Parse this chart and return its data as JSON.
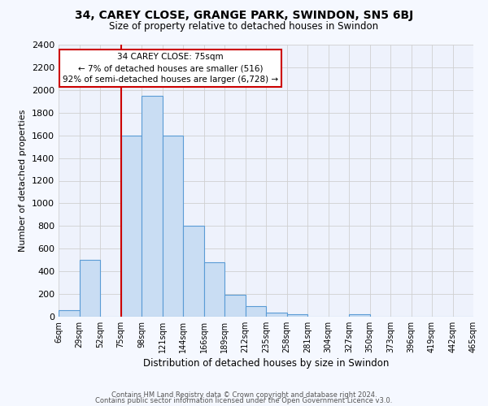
{
  "title": "34, CAREY CLOSE, GRANGE PARK, SWINDON, SN5 6BJ",
  "subtitle": "Size of property relative to detached houses in Swindon",
  "xlabel": "Distribution of detached houses by size in Swindon",
  "ylabel": "Number of detached properties",
  "footer1": "Contains HM Land Registry data © Crown copyright and database right 2024.",
  "footer2": "Contains public sector information licensed under the Open Government Licence v3.0.",
  "bin_edges": [
    6,
    29,
    52,
    75,
    98,
    121,
    144,
    167,
    190,
    213,
    236,
    259,
    282,
    305,
    328,
    351,
    374,
    397,
    420,
    443,
    466
  ],
  "bin_labels": [
    "6sqm",
    "29sqm",
    "52sqm",
    "75sqm",
    "98sqm",
    "121sqm",
    "144sqm",
    "166sqm",
    "189sqm",
    "212sqm",
    "235sqm",
    "258sqm",
    "281sqm",
    "304sqm",
    "327sqm",
    "350sqm",
    "373sqm",
    "396sqm",
    "419sqm",
    "442sqm",
    "465sqm"
  ],
  "counts": [
    60,
    500,
    0,
    1600,
    1950,
    1600,
    800,
    480,
    195,
    95,
    35,
    25,
    0,
    0,
    20,
    0,
    0,
    0,
    0,
    0
  ],
  "bar_facecolor": "#c9ddf3",
  "bar_edgecolor": "#5a9bd5",
  "grid_color": "#d0d0d0",
  "fig_background_color": "#f5f8ff",
  "ax_background_color": "#eef2fc",
  "red_line_x": 75,
  "annotation_text": "34 CAREY CLOSE: 75sqm\n← 7% of detached houses are smaller (516)\n92% of semi-detached houses are larger (6,728) →",
  "annotation_box_facecolor": "#ffffff",
  "annotation_box_edgecolor": "#cc0000",
  "ylim": [
    0,
    2400
  ],
  "yticks": [
    0,
    200,
    400,
    600,
    800,
    1000,
    1200,
    1400,
    1600,
    1800,
    2000,
    2200,
    2400
  ]
}
